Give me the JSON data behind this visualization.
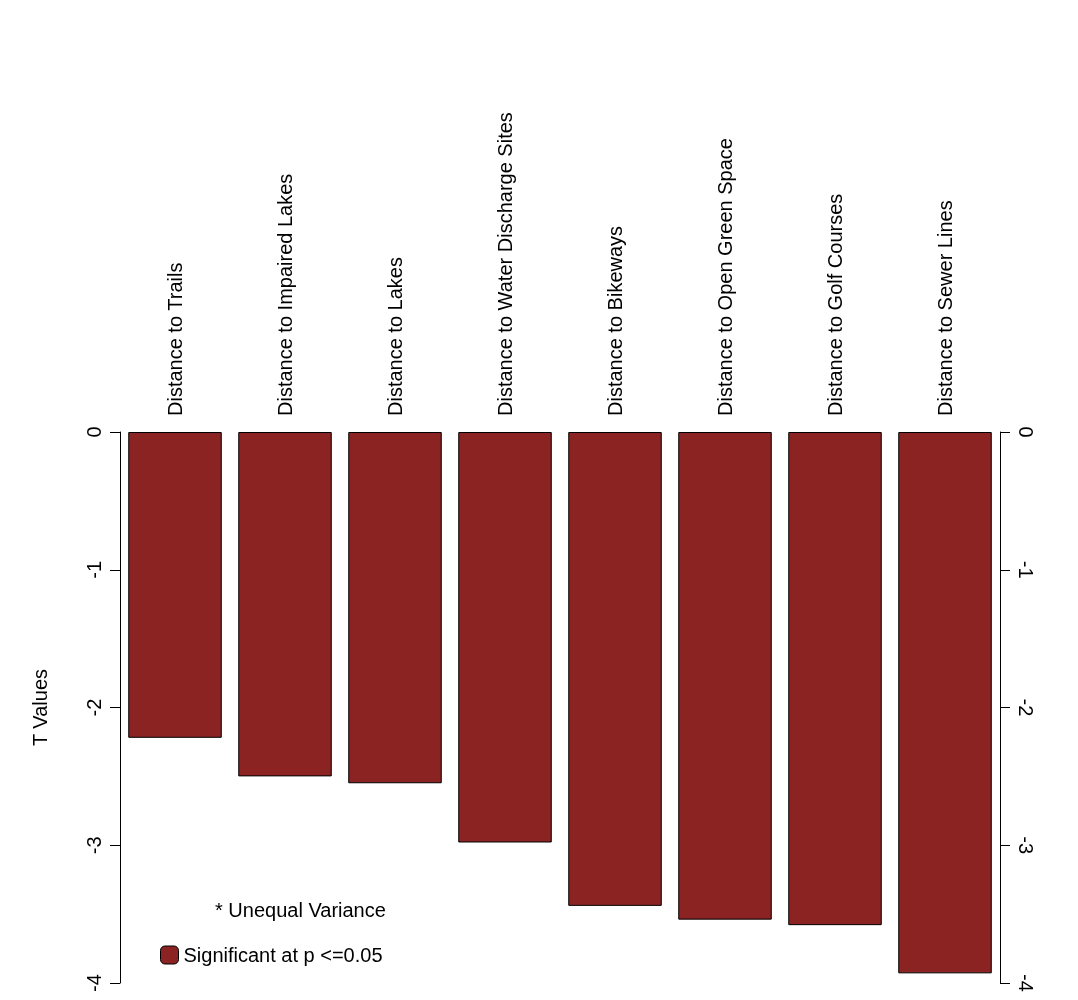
{
  "chart_data": {
    "type": "bar",
    "ylabel": "T Values",
    "categories": [
      "Distance to Trails",
      "Distance to Impaired Lakes",
      "Distance to Lakes",
      "Distance to Water Discharge Sites",
      "Distance to Bikeways",
      "Distance to Open Green Space",
      "Distance to Golf Courses",
      "Distance to Sewer Lines"
    ],
    "series": [
      {
        "name": "Significant at p <=0.05",
        "color": "#8b2323",
        "values": [
          -2.22,
          -2.5,
          -2.55,
          -2.98,
          -3.44,
          -3.54,
          -3.58,
          -3.93
        ]
      }
    ],
    "ylim": [
      -4,
      0
    ],
    "yticks": [
      -4,
      -3,
      -2,
      -1,
      0
    ],
    "y2lim": [
      -4,
      0
    ],
    "y2ticks": [
      -4,
      -3,
      -2,
      -1,
      0
    ],
    "annotations": [
      "* Unequal Variance"
    ],
    "legend": "bottom left",
    "grid": false
  }
}
